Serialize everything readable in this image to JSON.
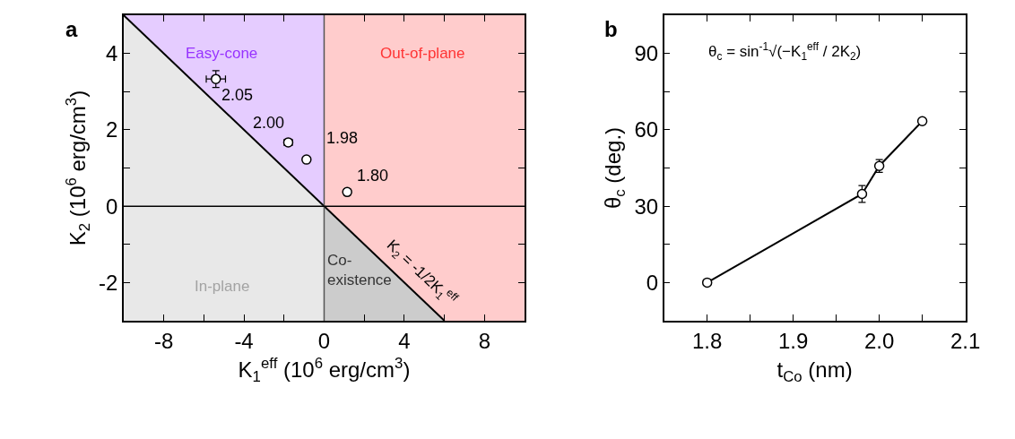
{
  "chart_data": [
    {
      "type": "scatter",
      "xlabel": "K$_{1}$$^{eff}$ (10$^{6}$ erg/cm$^{3}$)",
      "ylabel": "K$_{2}$ (10$^{6}$ erg/cm$^{3}$)",
      "xlim": [
        -10,
        10
      ],
      "ylim": [
        -3,
        5
      ],
      "xticks": [
        -8,
        {
          "value": -6,
          "label": null
        },
        -4,
        {
          "value": -2,
          "label": null
        },
        0,
        {
          "value": 2,
          "label": null
        },
        4,
        {
          "value": 6,
          "label": null
        },
        8
      ],
      "yticks": [
        -2,
        {
          "value": -1,
          "label": null
        },
        0,
        {
          "value": 1,
          "label": null
        },
        2,
        {
          "value": 3,
          "label": null
        },
        4
      ],
      "bands": [
        {
          "axis": "x",
          "from": -10,
          "to": 0,
          "color": "#e5ccff"
        },
        {
          "axis": "y",
          "from": -3,
          "to": 0,
          "color": "#e8e8e8"
        },
        {
          "axis": "x",
          "from": 0,
          "to": 10,
          "color": "#ffcccc"
        }
      ],
      "series": [
        {
          "type": "area",
          "color": "#e8e8e8",
          "x": [
            -10,
            -5,
            0
          ],
          "values": [
            5,
            2.5,
            0
          ]
        },
        {
          "type": "area",
          "color": "#cccccc",
          "x": [
            0,
            6
          ],
          "values": [
            0,
            -3
          ]
        },
        {
          "type": "line",
          "name": "K$_{2}$ = -1/2K$_{1}$$^{eff}$",
          "color": "#000000",
          "x": [
            -10,
            6
          ],
          "values": [
            5,
            -3
          ]
        },
        {
          "type": "scatter",
          "marker": "circle",
          "color": "#000000",
          "x": [
            -5.4,
            -1.79,
            -0.88,
            1.15
          ],
          "values": [
            3.33,
            1.67,
            1.22,
            0.37
          ],
          "errors": [
            0.22,
            0.08,
            null,
            0.08
          ],
          "xerrors": [
            0.48,
            0.2,
            null,
            0.1
          ]
        }
      ],
      "ref_lines": [
        {
          "axis": "x",
          "value": 0,
          "color": "#555555"
        },
        {
          "axis": "y",
          "value": 0,
          "color": "#000000"
        }
      ],
      "annotations": [
        "a",
        "Easy-cone",
        "Out-of-plane",
        "In-plane",
        "Co-\nexistence",
        {
          "text": "2.05",
          "x": -5.4,
          "y": 3.33
        },
        {
          "text": "2.00",
          "x": -1.79,
          "y": 1.67
        },
        {
          "text": "1.98",
          "x": -0.88,
          "y": 1.22
        },
        {
          "text": "1.80",
          "x": 1.15,
          "y": 0.37
        }
      ]
    },
    {
      "type": "line",
      "xlabel": "t$_{Co}$ (nm)",
      "ylabel": "θ$_{c}$ (deg.)",
      "xlim": [
        1.75,
        2.1
      ],
      "ylim": [
        -15,
        105
      ],
      "xticks": [
        1.8,
        {
          "value": 1.85,
          "label": null
        },
        1.9,
        {
          "value": 1.95,
          "label": null
        },
        {
          "value": 2,
          "label": "2.0"
        },
        {
          "value": 2.05,
          "label": null
        },
        2.1
      ],
      "yticks": [
        0,
        {
          "value": 15,
          "label": null
        },
        30,
        {
          "value": 45,
          "label": null
        },
        60,
        {
          "value": 75,
          "label": null
        },
        90
      ],
      "marker": "circle",
      "color": "#000000",
      "x": [
        1.8,
        1.98,
        2.0,
        2.05
      ],
      "values": [
        0,
        34.8,
        45.8,
        63.4
      ],
      "errors": [
        null,
        3.3,
        2.5,
        null
      ],
      "annotations": [
        "b",
        "θ$_{c}$ = sin$^{-1}$√(−K$_{1}$$^{eff}$ / 2K$_{2}$)"
      ]
    }
  ]
}
